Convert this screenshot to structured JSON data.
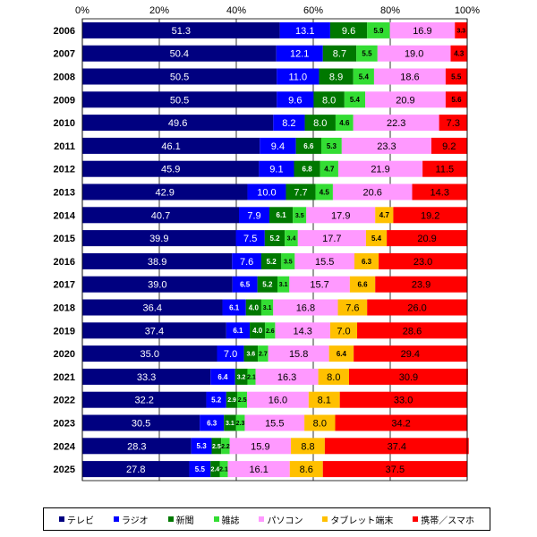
{
  "chart_data": {
    "type": "bar",
    "orientation": "horizontal",
    "stacked": true,
    "normalized_percent": true,
    "x_ticks": [
      "0%",
      "20%",
      "40%",
      "60%",
      "80%",
      "100%"
    ],
    "xlim": [
      0,
      100
    ],
    "legend_position": "bottom",
    "categories": [
      "2006",
      "2007",
      "2008",
      "2009",
      "2010",
      "2011",
      "2012",
      "2013",
      "2014",
      "2015",
      "2016",
      "2017",
      "2018",
      "2019",
      "2020",
      "2021",
      "2022",
      "2023",
      "2024",
      "2025"
    ],
    "series": [
      {
        "name": "テレビ",
        "color": "#000080",
        "label_color": "#ffffff",
        "values": [
          51.3,
          50.4,
          50.5,
          50.5,
          49.6,
          46.1,
          45.9,
          42.9,
          40.7,
          39.9,
          38.9,
          39.0,
          36.4,
          37.4,
          35.0,
          33.3,
          32.2,
          30.5,
          28.3,
          27.8
        ]
      },
      {
        "name": "ラジオ",
        "color": "#0000ff",
        "label_color": "#ffffff",
        "values": [
          13.1,
          12.1,
          11.0,
          9.6,
          8.2,
          9.4,
          9.1,
          10.0,
          7.9,
          7.5,
          7.6,
          6.5,
          6.1,
          6.1,
          7.0,
          6.4,
          5.2,
          6.3,
          5.3,
          5.5
        ]
      },
      {
        "name": "新聞",
        "color": "#007800",
        "label_color": "#ffffff",
        "values": [
          9.6,
          8.7,
          8.9,
          8.0,
          8.0,
          6.6,
          6.8,
          7.7,
          6.1,
          5.2,
          5.2,
          5.2,
          4.0,
          4.0,
          3.6,
          3.2,
          2.9,
          3.1,
          2.5,
          2.4
        ]
      },
      {
        "name": "雑誌",
        "color": "#33dd33",
        "label_color": "#000000",
        "values": [
          5.9,
          5.5,
          5.4,
          5.4,
          4.6,
          5.3,
          4.7,
          4.5,
          3.5,
          3.4,
          3.5,
          3.1,
          3.1,
          2.6,
          2.7,
          2.1,
          2.5,
          2.3,
          2.2,
          2.1
        ]
      },
      {
        "name": "パソコン",
        "color": "#ff99ff",
        "label_color": "#000000",
        "values": [
          16.9,
          19.0,
          18.6,
          20.9,
          22.3,
          23.3,
          21.9,
          20.6,
          17.9,
          17.7,
          15.5,
          15.7,
          16.8,
          14.3,
          15.8,
          16.3,
          16.0,
          15.5,
          15.9,
          16.1
        ]
      },
      {
        "name": "タブレット端末",
        "color": "#ffc000",
        "label_color": "#000000",
        "values": [
          null,
          null,
          null,
          null,
          null,
          null,
          null,
          null,
          4.7,
          5.4,
          6.3,
          6.6,
          7.6,
          7.0,
          6.4,
          8.0,
          8.1,
          8.0,
          8.8,
          8.6
        ]
      },
      {
        "name": "携帯／スマホ",
        "color": "#ff0000",
        "label_color": "#000000",
        "values": [
          3.3,
          4.3,
          5.5,
          5.6,
          7.3,
          9.2,
          11.5,
          14.3,
          19.2,
          20.9,
          23.0,
          23.9,
          26.0,
          28.6,
          29.4,
          30.9,
          33.0,
          34.2,
          37.4,
          37.5
        ]
      }
    ]
  }
}
